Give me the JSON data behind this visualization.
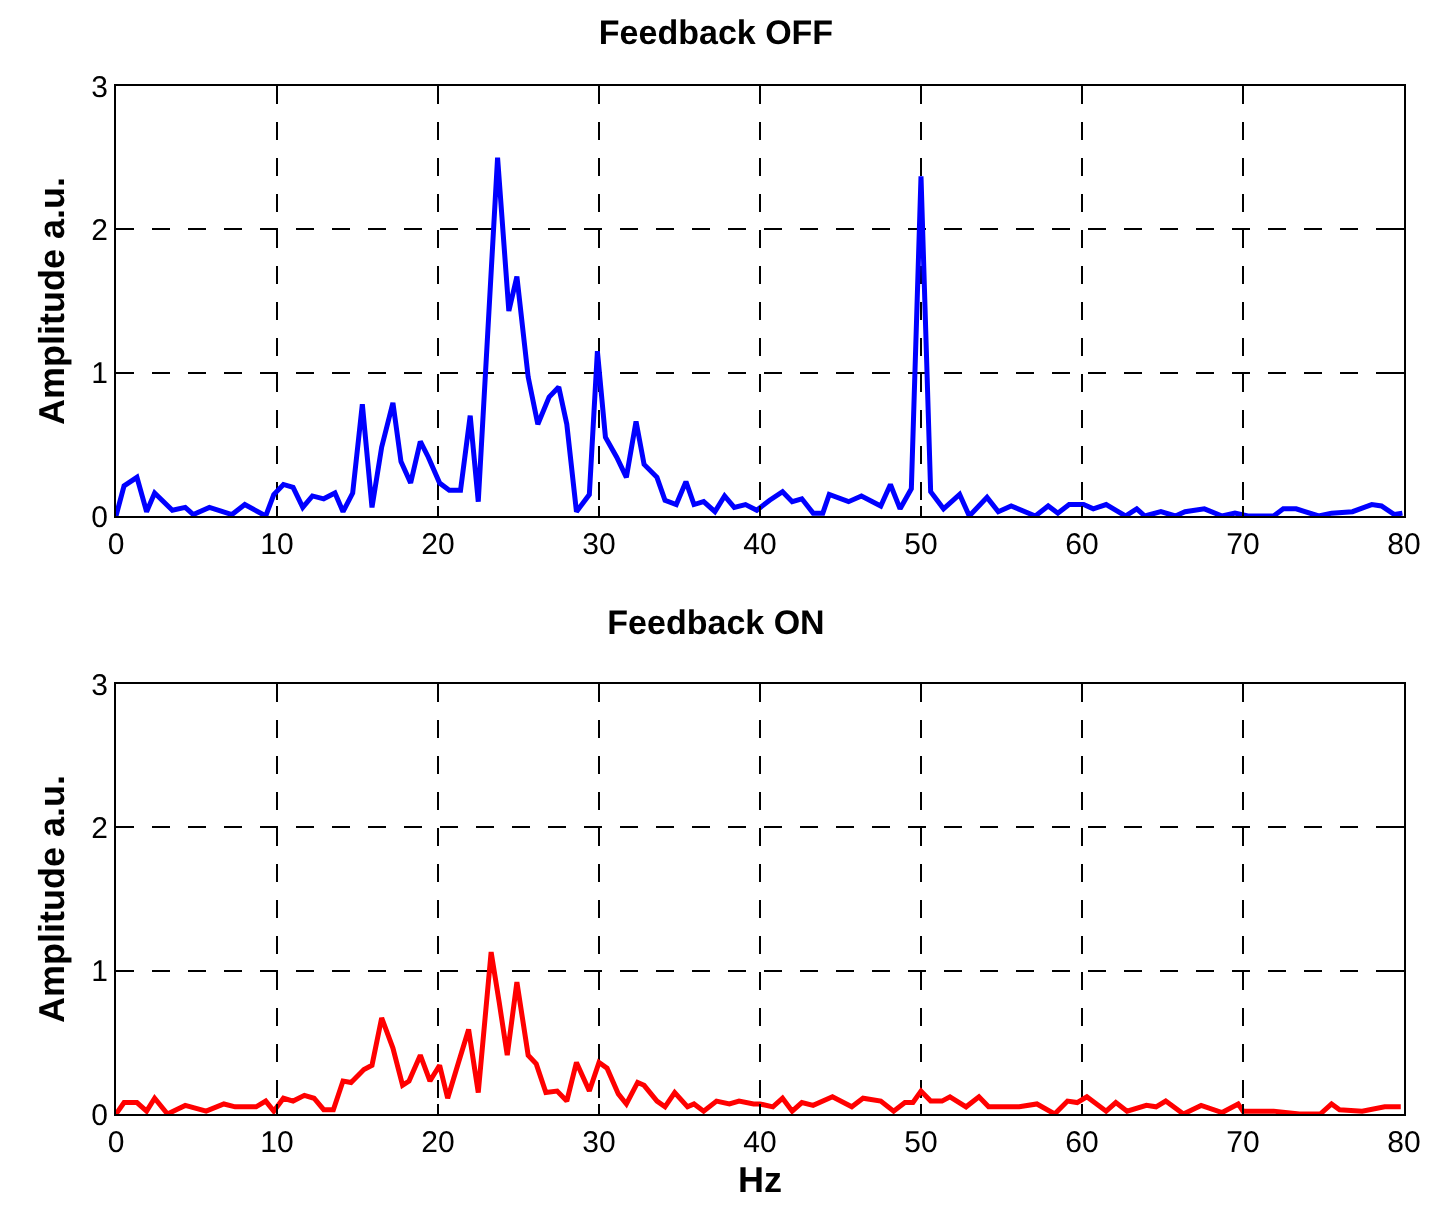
{
  "chart_data": [
    {
      "type": "line",
      "title": "Feedback OFF",
      "ylabel": "Amplitude a.u.",
      "xlim": [
        0,
        80
      ],
      "xticks": [
        0,
        10,
        20,
        30,
        40,
        50,
        60,
        70,
        80
      ],
      "ylim": [
        0,
        3
      ],
      "yticks": [
        0,
        1,
        2,
        3
      ],
      "grid": true,
      "series": [
        {
          "color": "#0000ff",
          "x": [
            0,
            0.5,
            1.3,
            1.9,
            2.4,
            3.5,
            4.3,
            4.8,
            5.8,
            7.2,
            8.0,
            9.3,
            9.8,
            10.4,
            11.0,
            11.6,
            12.2,
            12.9,
            13.6,
            14.1,
            14.7,
            15.3,
            15.9,
            16.5,
            17.2,
            17.7,
            18.3,
            18.9,
            19.4,
            20.1,
            20.7,
            21.4,
            22.0,
            22.5,
            23.7,
            24.4,
            24.9,
            25.6,
            26.2,
            26.9,
            27.5,
            28.0,
            28.6,
            29.4,
            29.9,
            30.4,
            31.1,
            31.7,
            32.3,
            32.8,
            33.6,
            34.1,
            34.8,
            35.4,
            35.9,
            36.5,
            37.2,
            37.8,
            38.4,
            39.1,
            39.8,
            40.6,
            41.4,
            42.0,
            42.6,
            43.3,
            43.9,
            44.3,
            45.5,
            46.3,
            47.5,
            48.1,
            48.7,
            49.4,
            50,
            50.6,
            51.4,
            52.4,
            53.0,
            54.1,
            54.8,
            55.6,
            57.1,
            57.9,
            58.5,
            59.2,
            60.1,
            60.7,
            61.5,
            62.7,
            63.4,
            63.9,
            64.9,
            65.8,
            66.4,
            67.6,
            68.7,
            69.5,
            70.3,
            71.9,
            72.5,
            73.3,
            74.7,
            75.5,
            76.8,
            78.0,
            78.6,
            79.4,
            79.9
          ],
          "values": [
            0,
            0.21,
            0.27,
            0.03,
            0.16,
            0.04,
            0.06,
            0.01,
            0.06,
            0.01,
            0.08,
            0,
            0.15,
            0.22,
            0.2,
            0.06,
            0.14,
            0.12,
            0.16,
            0.03,
            0.16,
            0.78,
            0.06,
            0.48,
            0.79,
            0.38,
            0.23,
            0.52,
            0.41,
            0.23,
            0.18,
            0.18,
            0.7,
            0.1,
            2.5,
            1.43,
            1.67,
            0.97,
            0.64,
            0.83,
            0.9,
            0.64,
            0.03,
            0.15,
            1.15,
            0.55,
            0.41,
            0.27,
            0.66,
            0.36,
            0.27,
            0.11,
            0.08,
            0.24,
            0.08,
            0.1,
            0.03,
            0.14,
            0.06,
            0.08,
            0.04,
            0.11,
            0.17,
            0.1,
            0.12,
            0.02,
            0.02,
            0.15,
            0.1,
            0.14,
            0.07,
            0.22,
            0.05,
            0.19,
            2.37,
            0.17,
            0.05,
            0.15,
            0,
            0.13,
            0.03,
            0.07,
            0,
            0.07,
            0.02,
            0.08,
            0.08,
            0.05,
            0.08,
            0,
            0.05,
            0,
            0.03,
            0,
            0.03,
            0.05,
            0,
            0.02,
            0,
            0,
            0.05,
            0.05,
            0,
            0.02,
            0.03,
            0.08,
            0.07,
            0.01,
            0.02
          ]
        }
      ]
    },
    {
      "type": "line",
      "title": "Feedback ON",
      "xlabel": "Hz",
      "ylabel": "Amplitude a.u.",
      "xlim": [
        0,
        80
      ],
      "xticks": [
        0,
        10,
        20,
        30,
        40,
        50,
        60,
        70,
        80
      ],
      "ylim": [
        0,
        3
      ],
      "yticks": [
        0,
        1,
        2,
        3
      ],
      "grid": true,
      "series": [
        {
          "color": "#ff0000",
          "x": [
            0,
            0.5,
            1.3,
            1.9,
            2.4,
            3.2,
            4.3,
            5.6,
            6.7,
            7.4,
            8.7,
            9.3,
            9.8,
            10.4,
            11.0,
            11.7,
            12.3,
            12.9,
            13.5,
            14.1,
            14.6,
            15.4,
            15.9,
            16.5,
            17.2,
            17.8,
            18.2,
            18.9,
            19.5,
            20.1,
            20.6,
            21.3,
            21.9,
            22.5,
            23.3,
            23.8,
            24.3,
            24.9,
            25.6,
            26.1,
            26.7,
            27.4,
            28.0,
            28.6,
            29.4,
            30.0,
            30.5,
            31.2,
            31.7,
            32.4,
            32.8,
            33.6,
            34.1,
            34.7,
            35.5,
            35.9,
            36.5,
            37.3,
            38.1,
            38.7,
            39.6,
            40.0,
            40.8,
            41.4,
            42.0,
            42.6,
            43.3,
            44.5,
            45.7,
            46.4,
            47.5,
            48.3,
            49.0,
            49.5,
            50,
            50.6,
            51.3,
            51.8,
            52.8,
            53.6,
            54.2,
            55.2,
            56.1,
            57.2,
            58.3,
            59.1,
            59.7,
            60.3,
            61.5,
            62.1,
            62.8,
            64.0,
            64.6,
            65.2,
            66.3,
            67.4,
            68.7,
            69.7,
            70.0,
            71.9,
            73.5,
            74.8,
            75.5,
            76.0,
            77.4,
            78.8,
            79.8
          ],
          "values": [
            0,
            0.08,
            0.08,
            0.02,
            0.11,
            0,
            0.06,
            0.02,
            0.07,
            0.05,
            0.05,
            0.09,
            0.02,
            0.11,
            0.09,
            0.13,
            0.11,
            0.03,
            0.03,
            0.23,
            0.22,
            0.31,
            0.34,
            0.67,
            0.46,
            0.2,
            0.23,
            0.41,
            0.23,
            0.34,
            0.11,
            0.37,
            0.59,
            0.15,
            1.13,
            0.78,
            0.41,
            0.92,
            0.41,
            0.35,
            0.15,
            0.16,
            0.09,
            0.36,
            0.16,
            0.36,
            0.32,
            0.14,
            0.07,
            0.22,
            0.2,
            0.09,
            0.05,
            0.15,
            0.05,
            0.07,
            0.02,
            0.09,
            0.07,
            0.09,
            0.07,
            0.07,
            0.05,
            0.11,
            0.02,
            0.08,
            0.06,
            0.12,
            0.05,
            0.11,
            0.09,
            0.02,
            0.08,
            0.08,
            0.16,
            0.09,
            0.09,
            0.12,
            0.05,
            0.12,
            0.05,
            0.05,
            0.05,
            0.07,
            0,
            0.09,
            0.08,
            0.12,
            0.02,
            0.08,
            0.02,
            0.06,
            0.05,
            0.09,
            0,
            0.06,
            0.01,
            0.07,
            0.02,
            0.02,
            0,
            0,
            0.07,
            0.03,
            0.02,
            0.05,
            0.05
          ]
        }
      ]
    }
  ]
}
